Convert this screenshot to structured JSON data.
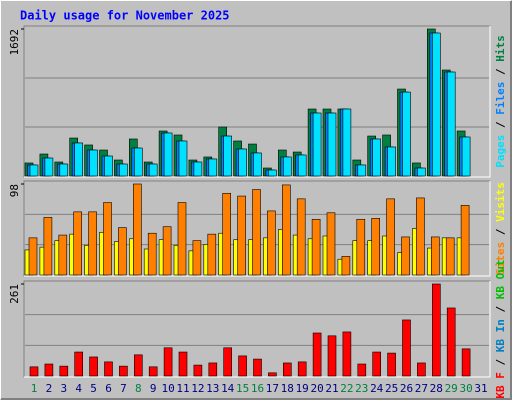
{
  "title": "Daily usage for November 2025",
  "chart_data": [
    {
      "type": "bar",
      "categories": [
        "1",
        "2",
        "3",
        "4",
        "5",
        "6",
        "7",
        "8",
        "9",
        "10",
        "11",
        "12",
        "13",
        "14",
        "15",
        "16",
        "17",
        "18",
        "19",
        "20",
        "21",
        "22",
        "23",
        "24",
        "25",
        "26",
        "27",
        "28",
        "29",
        "30",
        "31"
      ],
      "category_colors": [
        "#008040",
        "#000080",
        "#000080",
        "#000080",
        "#000080",
        "#000080",
        "#000080",
        "#008040",
        "#000080",
        "#000080",
        "#000080",
        "#000080",
        "#000080",
        "#000080",
        "#008040",
        "#008040",
        "#000080",
        "#000080",
        "#000080",
        "#000080",
        "#000080",
        "#008040",
        "#008040",
        "#000080",
        "#000080",
        "#000080",
        "#000080",
        "#000080",
        "#008040",
        "#008040",
        "#000080"
      ],
      "ylim": [
        0,
        1692
      ],
      "yticks": [
        1692
      ],
      "series": [
        {
          "name": "Hits",
          "color": "#008040",
          "values": [
            150,
            253,
            161,
            437,
            357,
            299,
            184,
            426,
            161,
            518,
            472,
            184,
            219,
            564,
            403,
            368,
            92,
            299,
            276,
            771,
            771,
            771,
            184,
            460,
            472,
            1001,
            150,
            1692,
            1220,
            518,
            0
          ]
        },
        {
          "name": "Files",
          "color": "#0080ff",
          "values": [
            127,
            207,
            138,
            380,
            299,
            230,
            138,
            322,
            138,
            495,
            403,
            161,
            196,
            460,
            311,
            265,
            69,
            219,
            242,
            725,
            725,
            771,
            127,
            426,
            334,
            966,
            92,
            1646,
            1197,
            449,
            0
          ]
        },
        {
          "name": "Pages",
          "color": "#00e0ff",
          "values": [
            127,
            207,
            138,
            380,
            299,
            230,
            138,
            322,
            138,
            495,
            403,
            161,
            196,
            460,
            311,
            265,
            69,
            219,
            242,
            725,
            725,
            771,
            127,
            426,
            334,
            966,
            92,
            1646,
            1197,
            449,
            0
          ]
        }
      ]
    },
    {
      "type": "bar",
      "ylim": [
        0,
        98
      ],
      "yticks": [
        98
      ],
      "series": [
        {
          "name": "Visits",
          "color": "#ffff00",
          "values": [
            27,
            30,
            37,
            44,
            32,
            46,
            36,
            39,
            28,
            38,
            32,
            26,
            33,
            45,
            38,
            38,
            40,
            49,
            43,
            39,
            42,
            17,
            37,
            37,
            42,
            24,
            50,
            29,
            40,
            40,
            0
          ]
        },
        {
          "name": "Sites",
          "color": "#ff8000",
          "values": [
            40,
            62,
            43,
            68,
            68,
            78,
            51,
            98,
            45,
            52,
            78,
            37,
            44,
            88,
            85,
            92,
            69,
            97,
            82,
            60,
            67,
            20,
            60,
            61,
            82,
            41,
            83,
            41,
            40,
            75,
            0
          ]
        }
      ]
    },
    {
      "type": "bar",
      "ylim": [
        0,
        261
      ],
      "yticks": [
        261
      ],
      "series": [
        {
          "name": "KB Out",
          "color": "#00c000",
          "values": [
            0,
            0,
            0,
            0,
            0,
            0,
            0,
            0,
            0,
            0,
            0,
            0,
            0,
            0,
            0,
            0,
            0,
            0,
            0,
            0,
            0,
            0,
            0,
            0,
            0,
            0,
            0,
            0,
            0,
            0,
            0
          ]
        },
        {
          "name": "KB In",
          "color": "#0080c0",
          "values": [
            0,
            0,
            0,
            0,
            0,
            0,
            0,
            0,
            0,
            0,
            0,
            0,
            0,
            0,
            0,
            0,
            0,
            0,
            0,
            0,
            0,
            0,
            0,
            0,
            0,
            0,
            0,
            0,
            0,
            0,
            0
          ]
        },
        {
          "name": "KB F",
          "color": "#ff0000",
          "values": [
            26,
            34,
            28,
            68,
            54,
            40,
            28,
            60,
            26,
            80,
            68,
            31,
            37,
            80,
            57,
            48,
            9,
            37,
            40,
            122,
            114,
            125,
            34,
            68,
            65,
            159,
            37,
            261,
            193,
            77,
            0
          ]
        }
      ]
    }
  ]
}
